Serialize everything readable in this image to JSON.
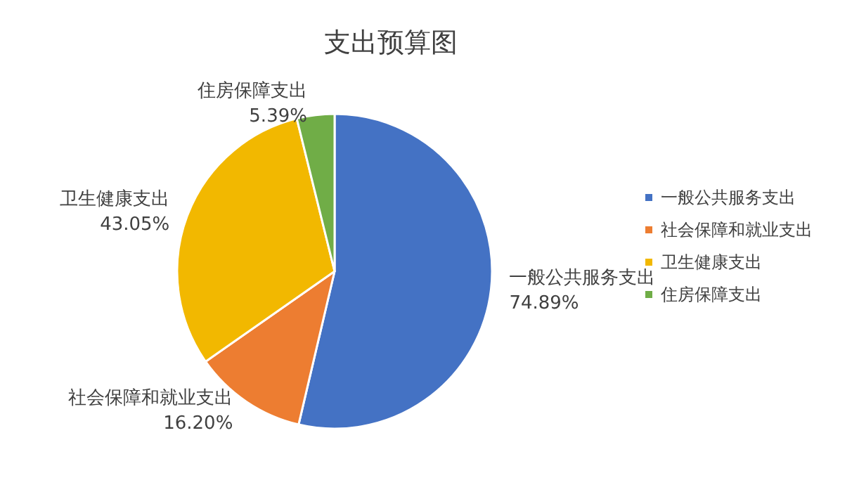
{
  "chart_data": {
    "type": "pie",
    "title": "支出预算图",
    "categories": [
      "一般公共服务支出",
      "社会保障和就业支出",
      "卫生健康支出",
      "住房保障支出"
    ],
    "values": [
      74.89,
      16.2,
      43.05,
      5.39
    ],
    "value_labels": [
      "74.89%",
      "16.20%",
      "43.05%",
      "5.39%"
    ],
    "colors": [
      "#4472c4",
      "#ed7d31",
      "#f2b800",
      "#70ad47"
    ],
    "legend": "right"
  }
}
